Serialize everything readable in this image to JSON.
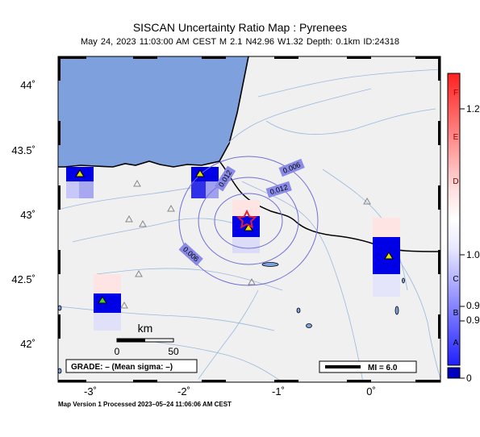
{
  "header": {
    "title": "SISCAN Uncertainty Ratio Map : Pyrenees",
    "subtitle": "May 24, 2023 11:03:00 AM CEST   M 2.1    N42.96 W1.32    Depth: 0.1km    ID:24318"
  },
  "map": {
    "lat_labels": [
      "44˚",
      "43.5˚",
      "43˚",
      "42.5˚",
      "42˚"
    ],
    "lon_labels": [
      "-3˚",
      "-2˚",
      "-1˚",
      "0˚"
    ],
    "contour_labels": [
      "0.012",
      "0.006",
      "0.012",
      "0.006"
    ],
    "scale_bar": {
      "unit": "km",
      "zero": "0",
      "max": "50"
    },
    "grade_box": "GRADE: – (Mean sigma: –)",
    "mi_legend": "MI = 6.0",
    "colors": {
      "ocean": "#7ea0dc",
      "land": "#f0f0f0",
      "epicenter": "#e0203a",
      "station": "#e8e000",
      "cell_blue": "#0000e6"
    }
  },
  "colorbar": {
    "values": [
      "1.2",
      "1.0",
      "0.9",
      "0.9",
      "0"
    ],
    "grades": [
      "F",
      "E",
      "D",
      "C",
      "B",
      "A"
    ]
  },
  "footer": {
    "processed": "Map Version 1 Processed 2023–05–24 11:06:06 AM CEST"
  }
}
